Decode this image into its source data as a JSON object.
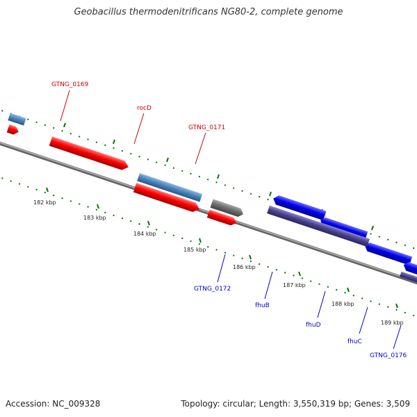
{
  "title": "Geobacillus thermodenitrificans NG80-2, complete genome",
  "accession": "Accession: NC_009328",
  "summary": "Topology: circular; Length: 3,550,319 bp; Genes: 3,509",
  "colors": {
    "forward_cds": "#ff0000",
    "forward_gene_blue": "#4a86c0",
    "reverse_cds": "#0000ee",
    "reverse_gene": "#4a4490",
    "pseudo_gray": "#6f6f6f",
    "label_red": "#cc0000",
    "label_blue": "#0000cc",
    "tick_green": "#007700",
    "backbone": "#888888"
  },
  "kbp_labels": [
    "182 kbp",
    "183 kbp",
    "184 kbp",
    "185 kbp",
    "186 kbp",
    "187 kbp",
    "188 kbp",
    "189 kbp"
  ],
  "forward_labels": [
    "GTNG_0169",
    "rocD",
    "GTNG_0171"
  ],
  "reverse_labels": [
    "GTNG_0172",
    "fhuB",
    "fhuD",
    "fhuC",
    "GTNG_0176"
  ]
}
